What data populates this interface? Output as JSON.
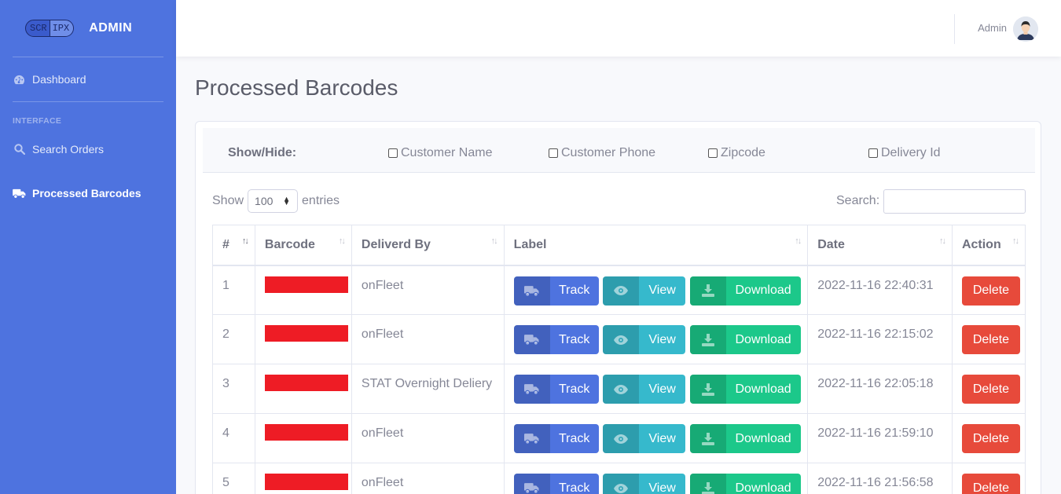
{
  "brand": {
    "logo_left": "SCR",
    "logo_right": "IPX",
    "name": "ADMIN"
  },
  "sidebar": {
    "items": [
      {
        "label": "Dashboard",
        "icon": "tachometer-icon"
      },
      {
        "label": "Search Orders",
        "icon": "search-icon"
      },
      {
        "label": "Processed Barcodes",
        "icon": "truck-icon",
        "active": true
      }
    ],
    "heading": "INTERFACE"
  },
  "topbar": {
    "user_name": "Admin"
  },
  "page": {
    "title": "Processed Barcodes"
  },
  "showhide": {
    "label": "Show/Hide:",
    "options": [
      "Customer Name",
      "Customer Phone",
      "Zipcode",
      "Delivery Id"
    ]
  },
  "entries": {
    "show_label": "Show",
    "value": "100",
    "entries_label": "entries",
    "search_label": "Search:"
  },
  "table": {
    "columns": [
      "#",
      "Barcode",
      "Deliverd By",
      "Label",
      "Date",
      "Action"
    ],
    "buttons": {
      "track": "Track",
      "view": "View",
      "download": "Download",
      "delete": "Delete"
    },
    "rows": [
      {
        "n": "1",
        "by": "onFleet",
        "date": "2022-11-16 22:40:31"
      },
      {
        "n": "2",
        "by": "onFleet",
        "date": "2022-11-16 22:15:02"
      },
      {
        "n": "3",
        "by": "STAT Overnight Deliery",
        "date": "2022-11-16 22:05:18"
      },
      {
        "n": "4",
        "by": "onFleet",
        "date": "2022-11-16 21:59:10"
      },
      {
        "n": "5",
        "by": "onFleet",
        "date": "2022-11-16 21:56:58"
      }
    ]
  }
}
